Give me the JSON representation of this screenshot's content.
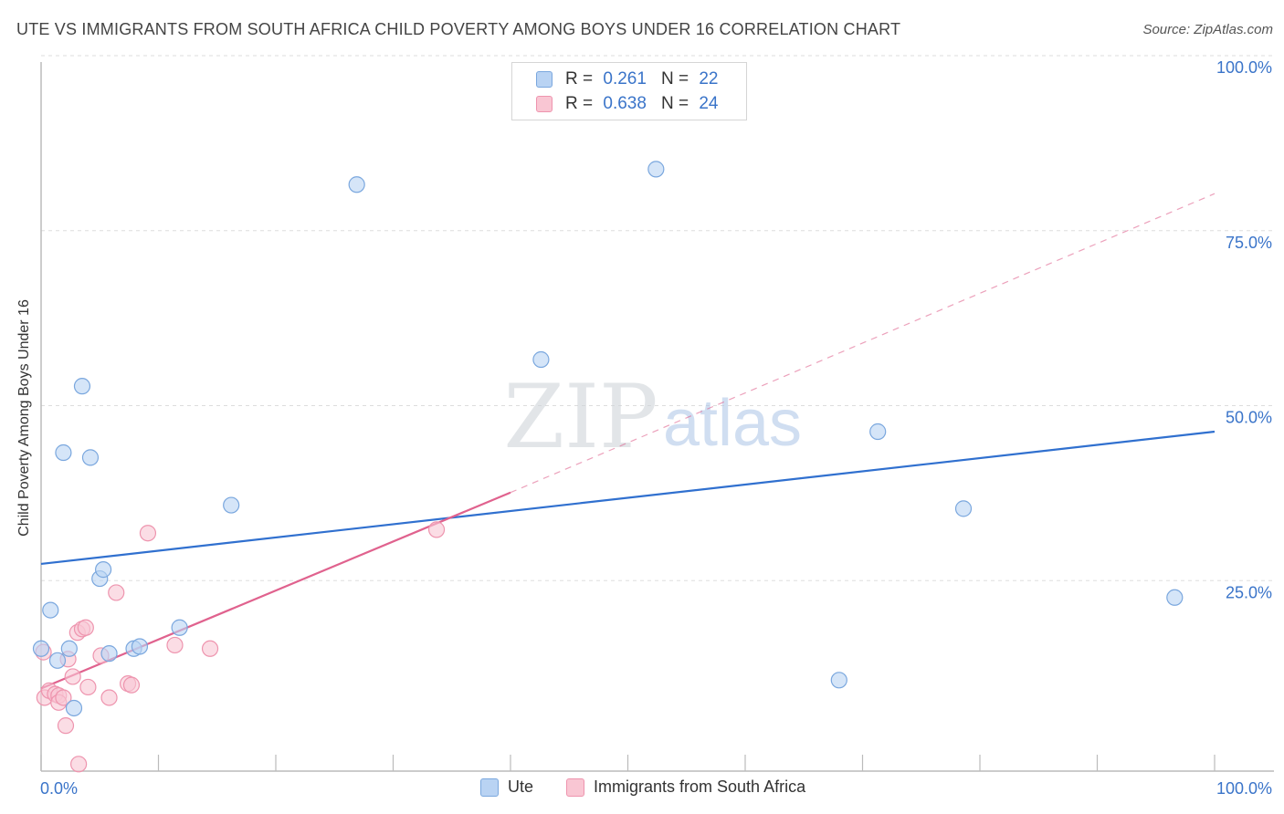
{
  "title": "UTE VS IMMIGRANTS FROM SOUTH AFRICA CHILD POVERTY AMONG BOYS UNDER 16 CORRELATION CHART",
  "source": "Source: ZipAtlas.com",
  "watermark": {
    "zip": "ZIP",
    "atlas": "atlas"
  },
  "legend_stats": [
    {
      "r_label": "R =",
      "r_value": "0.261",
      "n_label": "N =",
      "n_value": "22"
    },
    {
      "r_label": "R =",
      "r_value": "0.638",
      "n_label": "N =",
      "n_value": "24"
    }
  ],
  "legend_bottom": [
    {
      "label": "Ute"
    },
    {
      "label": "Immigrants from South Africa"
    }
  ],
  "colors": {
    "ute_fill": "#b9d3f3",
    "ute_stroke": "#7aa7de",
    "ute_line": "#3070cf",
    "sa_fill": "#f9c6d3",
    "sa_stroke": "#ee94ae",
    "sa_line": "#e0628e",
    "axis_text": "#3a74c9",
    "grid": "#dddddd"
  },
  "chart_data": {
    "type": "scatter",
    "title": "UTE VS IMMIGRANTS FROM SOUTH AFRICA CHILD POVERTY AMONG BOYS UNDER 16 CORRELATION CHART",
    "xlabel": "",
    "ylabel": "Child Poverty Among Boys Under 16",
    "xlim": [
      0,
      100
    ],
    "ylim": [
      0,
      100
    ],
    "x_tick_labels": [
      "0.0%",
      "100.0%"
    ],
    "y_tick_labels": [
      {
        "value": 100,
        "label": "100.0%"
      },
      {
        "value": 75,
        "label": "75.0%"
      },
      {
        "value": 50,
        "label": "50.0%"
      },
      {
        "value": 25,
        "label": "25.0%"
      }
    ],
    "series": [
      {
        "name": "Ute",
        "points": [
          {
            "x": 0.0,
            "y": 17.5
          },
          {
            "x": 0.8,
            "y": 23.0
          },
          {
            "x": 1.4,
            "y": 15.8
          },
          {
            "x": 1.9,
            "y": 45.5
          },
          {
            "x": 2.4,
            "y": 17.5
          },
          {
            "x": 2.8,
            "y": 9.0
          },
          {
            "x": 3.5,
            "y": 55.0
          },
          {
            "x": 4.2,
            "y": 44.8
          },
          {
            "x": 5.0,
            "y": 27.5
          },
          {
            "x": 5.3,
            "y": 28.8
          },
          {
            "x": 5.8,
            "y": 16.8
          },
          {
            "x": 7.9,
            "y": 17.5
          },
          {
            "x": 8.4,
            "y": 17.8
          },
          {
            "x": 11.8,
            "y": 20.5
          },
          {
            "x": 16.2,
            "y": 38.0
          },
          {
            "x": 26.9,
            "y": 83.8
          },
          {
            "x": 42.6,
            "y": 58.8
          },
          {
            "x": 52.4,
            "y": 86.0
          },
          {
            "x": 68.0,
            "y": 13.0
          },
          {
            "x": 71.3,
            "y": 48.5
          },
          {
            "x": 78.6,
            "y": 37.5
          },
          {
            "x": 96.6,
            "y": 24.8
          }
        ],
        "trend": {
          "x1": 0,
          "y1": 29.6,
          "x2": 100,
          "y2": 48.5,
          "style": "solid"
        }
      },
      {
        "name": "Immigrants from South Africa",
        "points": [
          {
            "x": 0.2,
            "y": 17.0
          },
          {
            "x": 0.3,
            "y": 10.5
          },
          {
            "x": 0.7,
            "y": 11.5
          },
          {
            "x": 1.2,
            "y": 11.0
          },
          {
            "x": 1.5,
            "y": 10.8
          },
          {
            "x": 1.5,
            "y": 9.8
          },
          {
            "x": 1.9,
            "y": 10.5
          },
          {
            "x": 2.1,
            "y": 6.5
          },
          {
            "x": 2.3,
            "y": 16.0
          },
          {
            "x": 2.7,
            "y": 13.5
          },
          {
            "x": 3.1,
            "y": 19.8
          },
          {
            "x": 3.2,
            "y": 1.0
          },
          {
            "x": 3.5,
            "y": 20.3
          },
          {
            "x": 3.8,
            "y": 20.5
          },
          {
            "x": 4.0,
            "y": 12.0
          },
          {
            "x": 5.1,
            "y": 16.5
          },
          {
            "x": 5.8,
            "y": 10.5
          },
          {
            "x": 6.4,
            "y": 25.5
          },
          {
            "x": 7.4,
            "y": 12.5
          },
          {
            "x": 7.7,
            "y": 12.3
          },
          {
            "x": 9.1,
            "y": 34.0
          },
          {
            "x": 11.4,
            "y": 18.0
          },
          {
            "x": 14.4,
            "y": 17.5
          },
          {
            "x": 33.7,
            "y": 34.5
          }
        ],
        "trend": {
          "x1": 0,
          "y1": 11.8,
          "x2": 40,
          "y2": 39.8,
          "style": "solid",
          "extension": {
            "x1": 40,
            "y1": 39.8,
            "x2": 100,
            "y2": 82.5,
            "style": "dashed"
          }
        }
      }
    ]
  }
}
